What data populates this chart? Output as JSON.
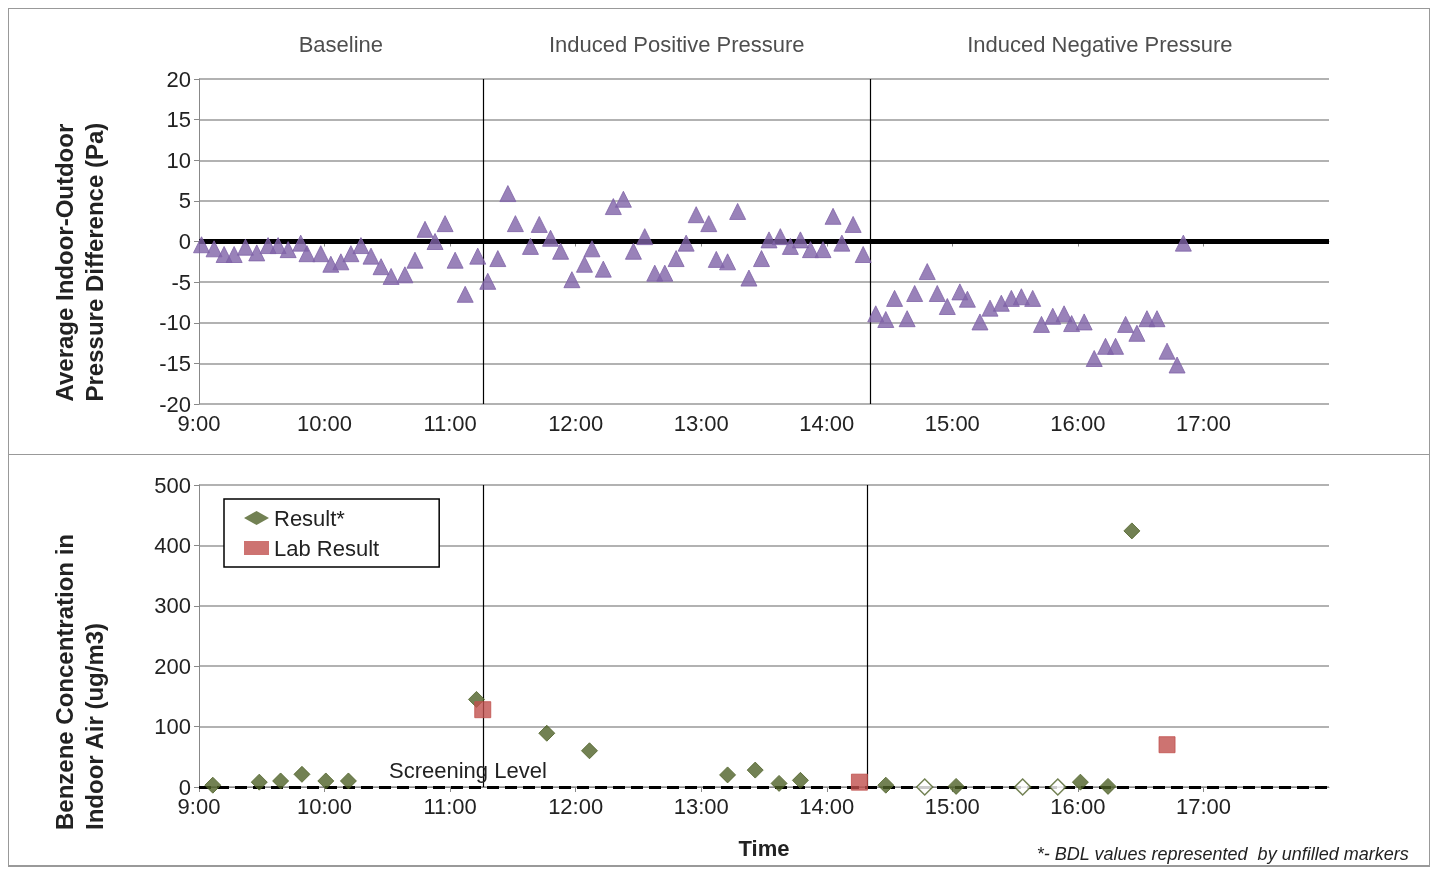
{
  "chart_data": [
    {
      "type": "scatter",
      "ylabel": "Average Indoor-Outdoor Pressure Difference (Pa)",
      "marker": "triangle",
      "grid": "y",
      "legend": false,
      "annotations": [
        "Baseline",
        "Induced Positive Pressure",
        "Induced Negative Pressure"
      ],
      "xlim": [
        9,
        18
      ],
      "xticks": [
        {
          "value": 9,
          "label": "9:00"
        },
        {
          "value": 10,
          "label": "10:00"
        },
        {
          "value": 11,
          "label": "11:00"
        },
        {
          "value": 12,
          "label": "12:00"
        },
        {
          "value": 13,
          "label": "13:00"
        },
        {
          "value": 14,
          "label": "14:00"
        },
        {
          "value": 15,
          "label": "15:00"
        },
        {
          "value": 16,
          "label": "16:00"
        },
        {
          "value": 17,
          "label": "17:00"
        }
      ],
      "ylim": [
        -20,
        20
      ],
      "yticks": [
        -20,
        -15,
        -10,
        -5,
        0,
        5,
        10,
        15,
        20
      ],
      "ref_lines": [
        {
          "axis": "y",
          "value": 0,
          "color": "#000000"
        },
        {
          "axis": "x",
          "value": 11.26,
          "color": "#000000"
        },
        {
          "axis": "x",
          "value": 14.35,
          "color": "#000000"
        }
      ],
      "series": [
        {
          "color": "#7f63a8",
          "x": [
            9.02,
            9.12,
            9.2,
            9.28,
            9.37,
            9.46,
            9.55,
            9.63,
            9.71,
            9.81,
            9.86,
            9.97,
            10.05,
            10.13,
            10.21,
            10.29,
            10.37,
            10.45,
            10.53,
            10.64,
            10.72,
            10.8,
            10.88,
            10.96,
            11.04,
            11.12,
            11.22,
            11.3,
            11.38,
            11.46,
            11.52,
            11.64,
            11.71,
            11.8,
            11.88,
            11.97,
            12.07,
            12.13,
            12.22,
            12.3,
            12.38,
            12.46,
            12.55,
            12.63,
            12.71,
            12.8,
            12.88,
            12.96,
            13.06,
            13.12,
            13.21,
            13.29,
            13.38,
            13.48,
            13.54,
            13.63,
            13.71,
            13.79,
            13.87,
            13.97,
            14.05,
            14.12,
            14.21,
            14.29,
            14.39,
            14.47,
            14.54,
            14.64,
            14.7,
            14.8,
            14.88,
            14.96,
            15.06,
            15.12,
            15.22,
            15.3,
            15.39,
            15.47,
            15.55,
            15.64,
            15.71,
            15.8,
            15.89,
            15.95,
            16.05,
            16.13,
            16.22,
            16.3,
            16.38,
            16.47,
            16.55,
            16.63,
            16.71,
            16.79,
            16.84
          ],
          "values": [
            -0.4,
            -0.9,
            -1.6,
            -1.6,
            -0.7,
            -1.4,
            -0.5,
            -0.5,
            -1,
            -0.2,
            -1.5,
            -1.5,
            -2.8,
            -2.5,
            -1.5,
            -0.5,
            -1.8,
            -3.1,
            -4.3,
            -4.1,
            -2.3,
            1.5,
            0,
            2.2,
            -2.3,
            -6.5,
            -1.8,
            -4.9,
            -2.1,
            5.9,
            2.2,
            -0.6,
            2.1,
            0.4,
            -1.2,
            -4.7,
            -2.8,
            -0.9,
            -3.4,
            4.3,
            5.2,
            -1.2,
            0.6,
            -3.9,
            -3.9,
            -2.1,
            -0.2,
            3.3,
            2.2,
            -2.2,
            -2.5,
            3.7,
            -4.5,
            -2.1,
            0.2,
            0.6,
            -0.6,
            0.2,
            -1,
            -1,
            3.1,
            -0.2,
            2.1,
            -1.6,
            -8.9,
            -9.6,
            -7,
            -9.5,
            -6.4,
            -3.7,
            -6.4,
            -8,
            -6.2,
            -7.1,
            -9.9,
            -8.2,
            -7.6,
            -7,
            -6.8,
            -7,
            -10.2,
            -9.2,
            -8.9,
            -10.1,
            -9.9,
            -14.4,
            -12.9,
            -12.9,
            -10.2,
            -11.3,
            -9.5,
            -9.5,
            -13.5,
            -15.2,
            -0.2
          ]
        }
      ]
    },
    {
      "type": "scatter",
      "xlabel": "Time",
      "ylabel": "Benzene Concentration in Indoor Air (ug/m3)",
      "grid": "y",
      "legend": "top left",
      "annotations": [
        "*- BDL values represented  by unfilled markers"
      ],
      "xlim": [
        9,
        18
      ],
      "xticks": [
        {
          "value": 9,
          "label": "9:00"
        },
        {
          "value": 10,
          "label": "10:00"
        },
        {
          "value": 11,
          "label": "11:00"
        },
        {
          "value": 12,
          "label": "12:00"
        },
        {
          "value": 13,
          "label": "13:00"
        },
        {
          "value": 14,
          "label": "14:00"
        },
        {
          "value": 15,
          "label": "15:00"
        },
        {
          "value": 16,
          "label": "16:00"
        },
        {
          "value": 17,
          "label": "17:00"
        }
      ],
      "ylim": [
        0,
        500
      ],
      "yticks": [
        0,
        100,
        200,
        300,
        400,
        500
      ],
      "ref_lines": [
        {
          "axis": "y",
          "value": 0,
          "label": "Screening Level",
          "color": "#000000",
          "line_style": "dashed"
        },
        {
          "axis": "x",
          "value": 11.26,
          "color": "#000000"
        },
        {
          "axis": "x",
          "value": 14.32,
          "color": "#000000"
        }
      ],
      "series": [
        {
          "name": "Result*",
          "color": "#4f6228",
          "marker": "diamond",
          "x": [
            9.11,
            9.48,
            9.65,
            9.82,
            10.01,
            10.19,
            11.21,
            11.77,
            12.11,
            13.21,
            13.43,
            13.62,
            13.79,
            14.47,
            15.03,
            16.02,
            16.24,
            16.43
          ],
          "values": [
            3,
            8,
            10,
            21,
            10,
            10,
            145,
            89,
            60,
            20,
            28,
            6,
            11,
            3,
            1,
            8,
            1,
            424
          ]
        },
        {
          "name": "Lab Result",
          "color": "#c0504d",
          "marker": "square",
          "x": [
            11.26,
            14.26,
            16.71
          ],
          "values": [
            128,
            8,
            70
          ]
        },
        {
          "color": "#4f6228",
          "marker": "diamond",
          "x": [
            14.78,
            15.56,
            15.84
          ],
          "values": [
            0,
            0,
            0
          ]
        }
      ]
    }
  ]
}
